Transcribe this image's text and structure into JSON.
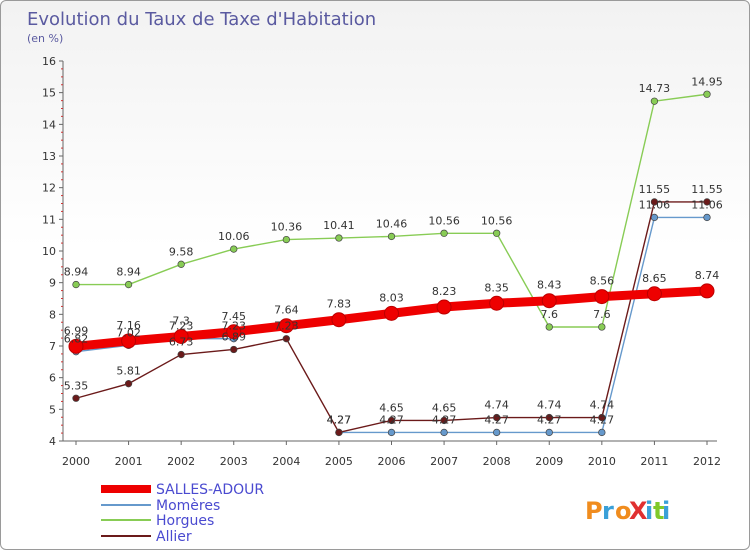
{
  "title": "Evolution du Taux de Taxe d'Habitation",
  "subtitle": "(en %)",
  "logo": {
    "text": "ProXiti",
    "colors": [
      "#f08c1e",
      "#3aa0d8",
      "#f08c1e",
      "#e03030",
      "#3aa0d8",
      "#7fc92a",
      "#3aa0d8"
    ]
  },
  "chart_data": {
    "type": "line",
    "title": "Evolution du Taux de Taxe d'Habitation",
    "ylabel": "(en %)",
    "xlabel": "",
    "x": [
      "2000",
      "2001",
      "2002",
      "2003",
      "2004",
      "2005",
      "2006",
      "2007",
      "2008",
      "2009",
      "2010",
      "2011",
      "2012"
    ],
    "ylim": [
      4,
      16
    ],
    "yticks": [
      4,
      5,
      6,
      7,
      8,
      9,
      10,
      11,
      12,
      13,
      14,
      15,
      16
    ],
    "grid": false,
    "legend_position": "bottom-left",
    "series": [
      {
        "name": "SALLES-ADOUR",
        "color": "#ee0000",
        "values": [
          6.99,
          7.16,
          7.3,
          7.45,
          7.64,
          7.83,
          8.03,
          8.23,
          8.35,
          8.43,
          8.56,
          8.65,
          8.74
        ],
        "labels": [
          "6.99",
          "7.16",
          "7.3",
          "7.45",
          "7.64",
          "7.83",
          "8.03",
          "8.23",
          "8.35",
          "8.43",
          "8.56",
          "8.65",
          "8.74"
        ]
      },
      {
        "name": "Momères",
        "color": "#6699cc",
        "values": [
          6.82,
          7.02,
          7.23,
          7.23,
          null,
          4.27,
          4.27,
          4.27,
          4.27,
          4.27,
          4.27,
          11.06,
          11.06
        ],
        "labels": [
          "6.82",
          "7.02",
          "7.23",
          "7.23",
          "",
          "4.27",
          "4.27",
          "4.27",
          "4.27",
          "4.27",
          "4.27",
          "11.06",
          "11.06"
        ]
      },
      {
        "name": "Horgues",
        "color": "#88cc55",
        "values": [
          8.94,
          8.94,
          9.58,
          10.06,
          10.36,
          10.41,
          10.46,
          10.56,
          10.56,
          7.6,
          7.6,
          14.73,
          14.95
        ],
        "labels": [
          "8.94",
          "8.94",
          "9.58",
          "10.06",
          "10.36",
          "10.41",
          "10.46",
          "10.56",
          "10.56",
          "7.6",
          "7.6",
          "14.73",
          "14.95"
        ]
      },
      {
        "name": "Allier",
        "color": "#6b1a1a",
        "values": [
          5.35,
          5.81,
          6.73,
          6.89,
          7.23,
          4.27,
          4.65,
          4.65,
          4.74,
          4.74,
          4.74,
          11.55,
          11.55
        ],
        "labels": [
          "5.35",
          "5.81",
          "6.73",
          "6.89",
          "7.23",
          "4.27",
          "4.65",
          "4.65",
          "4.74",
          "4.74",
          "4.74",
          "11.55",
          "11.55"
        ]
      }
    ]
  }
}
